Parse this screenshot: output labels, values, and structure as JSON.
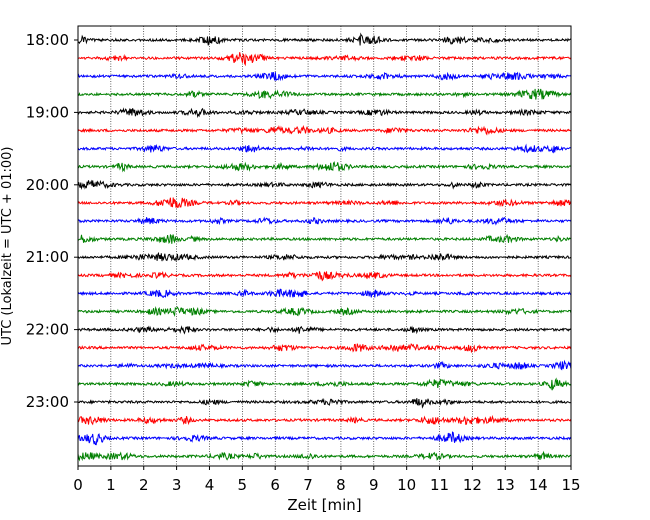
{
  "chart_data": {
    "type": "line",
    "title": "",
    "xlabel": "Zeit  [min]",
    "ylabel": "UTC (Lokalzeit = UTC + 01:00)",
    "xlim": [
      0,
      15
    ],
    "xticks": [
      0,
      1,
      2,
      3,
      4,
      5,
      6,
      7,
      8,
      9,
      10,
      11,
      12,
      13,
      14,
      15
    ],
    "yticks": [
      {
        "row": 0,
        "label": "18:00"
      },
      {
        "row": 4,
        "label": "19:00"
      },
      {
        "row": 8,
        "label": "20:00"
      },
      {
        "row": 12,
        "label": "21:00"
      },
      {
        "row": 16,
        "label": "22:00"
      },
      {
        "row": 20,
        "label": "23:00"
      }
    ],
    "grid_x": true,
    "rows": 24,
    "row_minutes": 15,
    "start_time": "18:00",
    "trace_colors": [
      "#000000",
      "#ff0000",
      "#0000ff",
      "#008000"
    ]
  }
}
